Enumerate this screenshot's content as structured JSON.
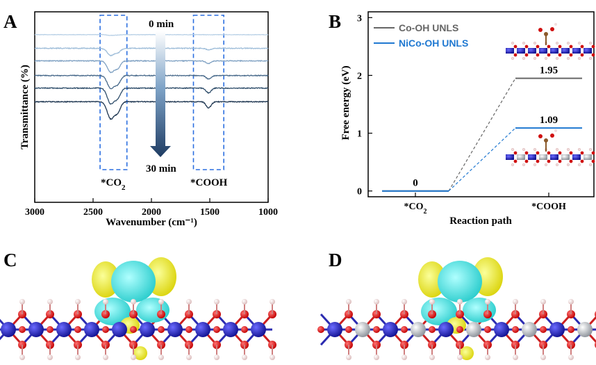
{
  "panels": {
    "A": "A",
    "B": "B",
    "C": "C",
    "D": "D"
  },
  "chart_data": [
    {
      "panel": "A",
      "type": "line",
      "xlabel": "Wavenumber (cm⁻¹)",
      "ylabel": "Transmittance (%)",
      "xlim": [
        3000,
        1000
      ],
      "x_reversed": true,
      "xticks": [
        "3000",
        "2500",
        "2000",
        "1500",
        "1000"
      ],
      "y_ticks_shown": false,
      "annotations": {
        "time_start": "0 min",
        "time_end": "30 min",
        "co2_label": "*CO",
        "co2_sub": "2",
        "cooh_label": "*COOH"
      },
      "highlight_bands": [
        {
          "name": "*CO2",
          "range": [
            2440,
            2210
          ]
        },
        {
          "name": "*COOH",
          "range": [
            1640,
            1380
          ]
        }
      ],
      "series_colors": [
        "#b8d0e6",
        "#9ebdd9",
        "#7ea0c2",
        "#496a8b",
        "#2e4d6a",
        "#1d3550"
      ],
      "series_offsets_rel": [
        0.0,
        0.13,
        0.25,
        0.39,
        0.51,
        0.64
      ],
      "features": [
        {
          "center": 2350,
          "width": 40,
          "depth": [
            1.0,
            10,
            16,
            18,
            22,
            24
          ]
        },
        {
          "center": 2290,
          "width": 35,
          "depth": [
            0.5,
            6,
            10,
            12,
            14,
            15
          ]
        },
        {
          "center": 1510,
          "width": 30,
          "depth": [
            0.2,
            2,
            4,
            5,
            7,
            9
          ]
        }
      ],
      "series": [
        {
          "name": "0 min"
        },
        {
          "name": ""
        },
        {
          "name": ""
        },
        {
          "name": ""
        },
        {
          "name": ""
        },
        {
          "name": "30 min"
        }
      ]
    },
    {
      "panel": "B",
      "type": "line",
      "xlabel": "Reaction path",
      "ylabel": "Free energy (eV)",
      "categories": [
        "*CO2",
        "*COOH"
      ],
      "category_labels": [
        {
          "main": "*CO",
          "sub": "2"
        },
        {
          "main": "*COOH",
          "sub": ""
        }
      ],
      "ylim": [
        -0.1,
        3.1
      ],
      "yticks": [
        "0",
        "1",
        "2",
        "3"
      ],
      "legend_position": "top-left",
      "series": [
        {
          "name": "Co-OH UNLS",
          "color": "#666666",
          "values": [
            0,
            1.95
          ],
          "labels": [
            "0",
            "1.95"
          ]
        },
        {
          "name": "NiCo-OH UNLS",
          "color": "#1f78d1",
          "values": [
            0,
            1.09
          ],
          "labels": [
            "",
            "1.09"
          ]
        }
      ]
    }
  ]
}
